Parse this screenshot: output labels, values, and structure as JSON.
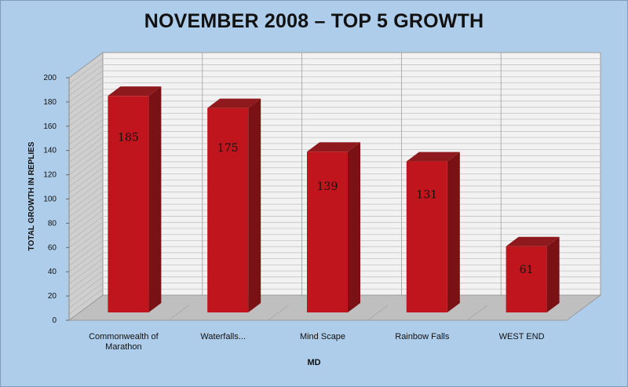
{
  "chart_data": {
    "type": "bar",
    "title": "NOVEMBER 2008 – TOP 5 GROWTH",
    "xlabel": "MD",
    "ylabel": "TOTAL GROWTH IN REPLIES",
    "categories": [
      "Commonwealth of Marathon",
      "Waterfalls...",
      "Mind Scape",
      "Rainbow Falls",
      "WEST END"
    ],
    "values": [
      185,
      175,
      139,
      131,
      61
    ],
    "data_labels": [
      "185",
      "175",
      "139",
      "131",
      "61"
    ],
    "yticks": [
      "0",
      "20",
      "40",
      "60",
      "80",
      "100",
      "120",
      "140",
      "160",
      "180",
      "200"
    ],
    "ylim": [
      0,
      200
    ],
    "grid": true,
    "legend": "none",
    "colors": {
      "bar_front": "#c0151c",
      "bar_top": "#8f1a1d",
      "bar_side": "#7a1215",
      "background": "#aecdea",
      "wall": "#f2f2f2",
      "floor": "#bfbfbf"
    }
  }
}
